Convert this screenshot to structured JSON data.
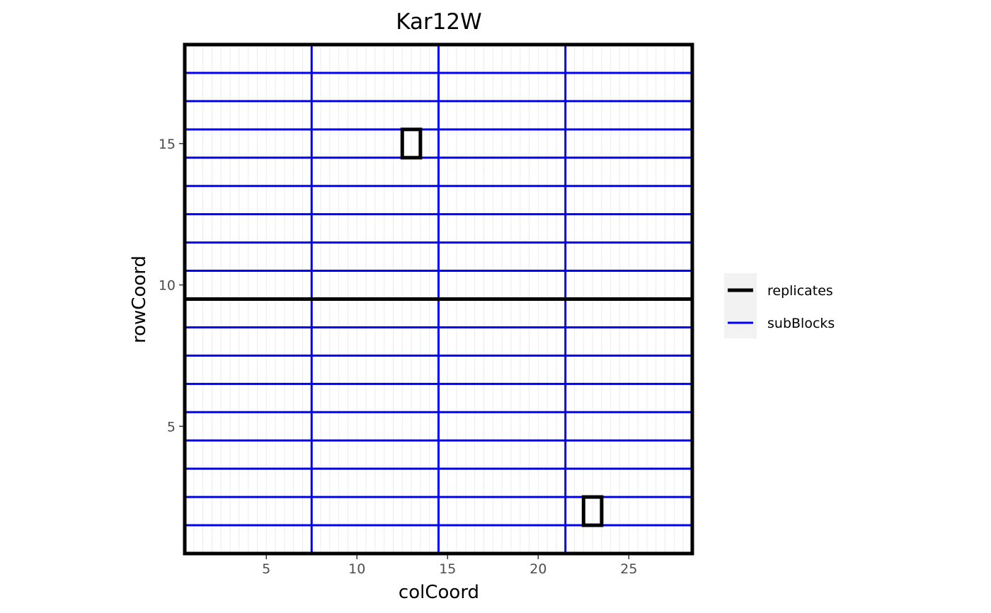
{
  "chart_data": {
    "type": "layout-grid",
    "title": "Kar12W",
    "xlabel": "colCoord",
    "ylabel": "rowCoord",
    "xlim": [
      0.5,
      28.5
    ],
    "ylim": [
      0.5,
      18.5
    ],
    "x_ticks": [
      5,
      10,
      15,
      20,
      25
    ],
    "y_ticks": [
      5,
      10,
      15
    ],
    "grid": "minor-vertical",
    "plot_border": "black",
    "legend_position": "right",
    "series": [
      {
        "name": "replicates",
        "color": "#000000",
        "vertical_lines_x": [],
        "horizontal_lines_y": [
          9.5
        ]
      },
      {
        "name": "subBlocks",
        "color": "#0000ff",
        "vertical_lines_x": [
          7.5,
          14.5,
          21.5
        ],
        "horizontal_lines_y": [
          1.5,
          2.5,
          3.5,
          4.5,
          5.5,
          6.5,
          7.5,
          8.5,
          10.5,
          11.5,
          12.5,
          13.5,
          14.5,
          15.5,
          16.5,
          17.5
        ]
      }
    ],
    "highlighted_cells": [
      {
        "col": 13,
        "row": 15
      },
      {
        "col": 23,
        "row": 2
      }
    ]
  }
}
